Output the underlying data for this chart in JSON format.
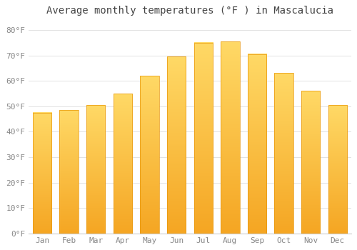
{
  "title": "Average monthly temperatures (°F ) in Mascalucia",
  "months": [
    "Jan",
    "Feb",
    "Mar",
    "Apr",
    "May",
    "Jun",
    "Jul",
    "Aug",
    "Sep",
    "Oct",
    "Nov",
    "Dec"
  ],
  "values": [
    47.5,
    48.5,
    50.5,
    55.0,
    62.0,
    69.5,
    75.0,
    75.5,
    70.5,
    63.0,
    56.0,
    50.5
  ],
  "bar_color_bottom": "#F5A623",
  "bar_color_top": "#FFD966",
  "bar_edge_color": "#E8960A",
  "background_color": "#FFFFFF",
  "grid_color": "#DDDDDD",
  "ylim": [
    0,
    84
  ],
  "yticks": [
    0,
    10,
    20,
    30,
    40,
    50,
    60,
    70,
    80
  ],
  "ytick_labels": [
    "0°F",
    "10°F",
    "20°F",
    "30°F",
    "40°F",
    "50°F",
    "60°F",
    "70°F",
    "80°F"
  ],
  "title_fontsize": 10,
  "tick_fontsize": 8,
  "title_color": "#444444",
  "tick_color": "#888888",
  "spine_color": "#CCCCCC",
  "bar_width": 0.7,
  "n_gradient_steps": 100
}
